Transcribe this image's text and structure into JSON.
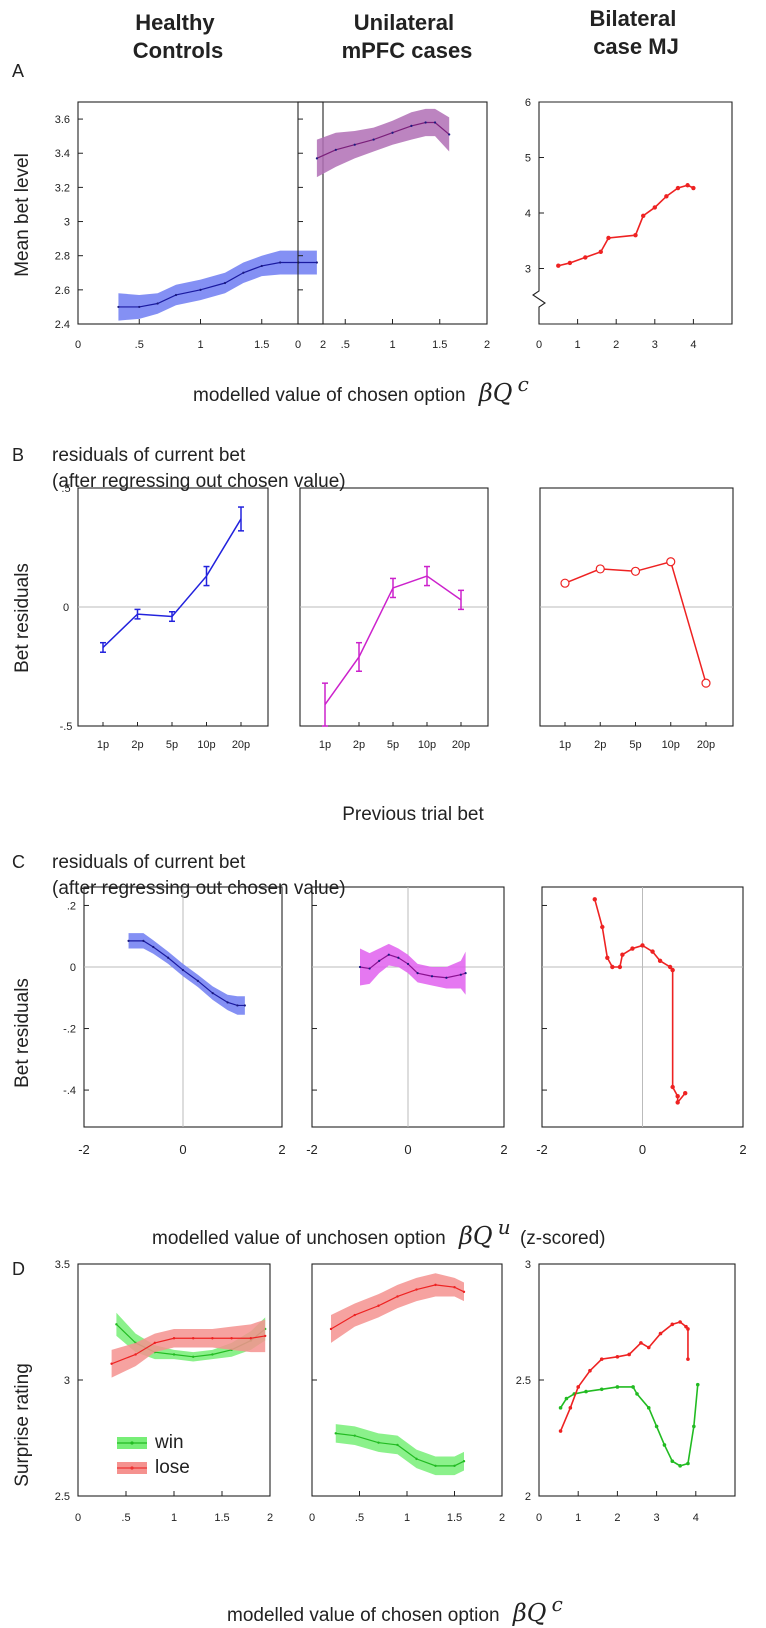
{
  "headers": [
    "Healthy\nControls",
    "Unilateral\nmPFC cases",
    "Bilateral\ncase MJ"
  ],
  "panel_letters": [
    "A",
    "B",
    "C",
    "D"
  ],
  "section_B_title": [
    "residuals of current bet",
    "(after regressing out chosen value)"
  ],
  "section_C_title": [
    "residuals of current bet",
    "(after regressing out chosen value)"
  ],
  "xlabel_A": "modelled value of chosen option",
  "xlabel_A_math": "βQ",
  "xlabel_A_sup": "c",
  "xlabel_B": "Previous trial bet",
  "xlabel_C": "modelled value of unchosen option",
  "xlabel_C_math": "βQ",
  "xlabel_C_sup": "u",
  "xlabel_C_suffix": "(z-scored)",
  "xlabel_D": "modelled value of chosen option",
  "xlabel_D_math": "βQ",
  "xlabel_D_sup": "c",
  "ylabel_A": "Mean bet level",
  "ylabel_B": "Bet residuals",
  "ylabel_C": "Bet residuals",
  "ylabel_D": "Surprise rating",
  "legend": [
    {
      "name": "win",
      "color": "#22bb22"
    },
    {
      "name": "lose",
      "color": "#ee3333"
    }
  ],
  "colors": {
    "blue": "#2222dd",
    "blue_band": "#6f7cf2",
    "purple": "#7a1f7a",
    "purple_band": "#b06fb5",
    "magenta": "#cc22cc",
    "magenta_band": "#e060ee",
    "red": "#ee2222",
    "green": "#22bb22",
    "green_band": "#77ee77",
    "red_band": "#f5928f"
  },
  "chart_data": [
    {
      "panel": "A",
      "group": "Healthy Controls",
      "type": "line",
      "x": [
        0.33,
        0.5,
        0.65,
        0.8,
        1.0,
        1.2,
        1.35,
        1.5,
        1.65,
        1.8,
        1.95
      ],
      "y": [
        2.5,
        2.5,
        2.52,
        2.57,
        2.6,
        2.64,
        2.7,
        2.74,
        2.76,
        2.76,
        2.76
      ],
      "err": [
        0.08,
        0.07,
        0.06,
        0.06,
        0.06,
        0.06,
        0.06,
        0.06,
        0.07,
        0.07,
        0.07
      ],
      "xlim": [
        0,
        2
      ],
      "ylim": [
        2.4,
        3.7
      ],
      "xticks": [
        "0",
        ".5",
        "1",
        "1.5",
        "2"
      ],
      "yticks": [
        "2.4",
        "2.6",
        "2.8",
        "3",
        "3.2",
        "3.4",
        "3.6"
      ]
    },
    {
      "panel": "A",
      "group": "Unilateral mPFC cases",
      "type": "line",
      "x": [
        0.2,
        0.4,
        0.6,
        0.8,
        1.0,
        1.2,
        1.35,
        1.45,
        1.6
      ],
      "y": [
        3.37,
        3.42,
        3.45,
        3.48,
        3.52,
        3.56,
        3.58,
        3.58,
        3.51
      ],
      "err": [
        0.11,
        0.1,
        0.08,
        0.07,
        0.07,
        0.08,
        0.08,
        0.08,
        0.1
      ],
      "xlim": [
        0,
        2
      ],
      "ylim": [
        2.4,
        3.7
      ],
      "xticks": [
        "0",
        ".5",
        "1",
        "1.5",
        "2"
      ]
    },
    {
      "panel": "A",
      "group": "Bilateral case MJ",
      "type": "line",
      "x": [
        0.5,
        0.8,
        1.2,
        1.6,
        1.8,
        2.5,
        2.7,
        3.0,
        3.3,
        3.6,
        3.85,
        4.0
      ],
      "y": [
        3.05,
        3.1,
        3.2,
        3.3,
        3.55,
        3.6,
        3.95,
        4.1,
        4.3,
        4.45,
        4.5,
        4.45
      ],
      "xlim": [
        0,
        5
      ],
      "ylim": [
        2.0,
        6.0
      ],
      "xticks": [
        "0",
        "1",
        "2",
        "3",
        "4"
      ],
      "yticks": [
        "3",
        "4",
        "5",
        "6"
      ]
    },
    {
      "panel": "B",
      "group": "Healthy Controls",
      "type": "line",
      "categories": [
        "1p",
        "2p",
        "5p",
        "10p",
        "20p"
      ],
      "values": [
        -0.17,
        -0.03,
        -0.04,
        0.13,
        0.37
      ],
      "err": [
        0.02,
        0.02,
        0.02,
        0.04,
        0.05
      ],
      "ylim": [
        -0.5,
        0.5
      ],
      "yticks": [
        "-.5",
        "0",
        ".5"
      ]
    },
    {
      "panel": "B",
      "group": "Unilateral mPFC cases",
      "type": "line",
      "categories": [
        "1p",
        "2p",
        "5p",
        "10p",
        "20p"
      ],
      "values": [
        -0.41,
        -0.21,
        0.08,
        0.13,
        0.03
      ],
      "err": [
        0.09,
        0.06,
        0.04,
        0.04,
        0.04
      ],
      "ylim": [
        -0.5,
        0.5
      ]
    },
    {
      "panel": "B",
      "group": "Bilateral case MJ",
      "type": "line",
      "categories": [
        "1p",
        "2p",
        "5p",
        "10p",
        "20p"
      ],
      "values": [
        0.1,
        0.16,
        0.15,
        0.19,
        -0.32
      ],
      "ylim": [
        -0.5,
        0.5
      ]
    },
    {
      "panel": "C",
      "group": "Healthy Controls",
      "type": "line",
      "x": [
        -1.1,
        -0.8,
        -0.6,
        -0.3,
        0.0,
        0.3,
        0.6,
        0.9,
        1.1,
        1.25
      ],
      "y": [
        0.085,
        0.085,
        0.065,
        0.03,
        -0.01,
        -0.045,
        -0.085,
        -0.115,
        -0.125,
        -0.125
      ],
      "err": [
        0.025,
        0.025,
        0.022,
        0.02,
        0.02,
        0.02,
        0.022,
        0.025,
        0.03,
        0.03
      ],
      "xlim": [
        -2,
        2
      ],
      "ylim": [
        -0.52,
        0.26
      ],
      "xticks": [
        "-2",
        "0",
        "2"
      ],
      "yticks": [
        ".2",
        "0",
        "-.2",
        "-.4"
      ]
    },
    {
      "panel": "C",
      "group": "Unilateral mPFC cases",
      "type": "line",
      "x": [
        -1.0,
        -0.8,
        -0.6,
        -0.4,
        -0.2,
        0.0,
        0.2,
        0.5,
        0.8,
        1.1,
        1.2
      ],
      "y": [
        0.0,
        -0.005,
        0.02,
        0.04,
        0.03,
        0.01,
        -0.02,
        -0.03,
        -0.035,
        -0.025,
        -0.02
      ],
      "err": [
        0.06,
        0.05,
        0.04,
        0.035,
        0.03,
        0.03,
        0.03,
        0.03,
        0.035,
        0.045,
        0.07
      ],
      "xlim": [
        -2,
        2
      ],
      "ylim": [
        -0.52,
        0.26
      ],
      "xticks": [
        "-2",
        "0",
        "2"
      ]
    },
    {
      "panel": "C",
      "group": "Bilateral case MJ",
      "type": "line",
      "x": [
        -0.95,
        -0.8,
        -0.7,
        -0.6,
        -0.45,
        -0.4,
        -0.2,
        0.0,
        0.2,
        0.35,
        0.55,
        0.6,
        0.6,
        0.7,
        0.7,
        0.85
      ],
      "y": [
        0.22,
        0.13,
        0.03,
        0.0,
        0.0,
        0.04,
        0.06,
        0.07,
        0.05,
        0.02,
        0.0,
        -0.01,
        -0.39,
        -0.42,
        -0.44,
        -0.41
      ],
      "xlim": [
        -2,
        2
      ],
      "ylim": [
        -0.52,
        0.26
      ],
      "xticks": [
        "-2",
        "0",
        "2"
      ]
    },
    {
      "panel": "D",
      "group": "Healthy Controls",
      "type": "line",
      "series": [
        {
          "name": "win",
          "x": [
            0.4,
            0.6,
            0.8,
            1.0,
            1.2,
            1.4,
            1.6,
            1.8,
            1.95
          ],
          "y": [
            3.24,
            3.16,
            3.12,
            3.11,
            3.1,
            3.11,
            3.13,
            3.17,
            3.22
          ],
          "err": [
            0.05,
            0.04,
            0.03,
            0.02,
            0.02,
            0.02,
            0.03,
            0.04,
            0.05
          ]
        },
        {
          "name": "lose",
          "x": [
            0.35,
            0.6,
            0.8,
            1.0,
            1.2,
            1.4,
            1.6,
            1.8,
            1.95
          ],
          "y": [
            3.07,
            3.11,
            3.16,
            3.18,
            3.18,
            3.18,
            3.18,
            3.18,
            3.19
          ],
          "err": [
            0.06,
            0.05,
            0.04,
            0.04,
            0.04,
            0.04,
            0.05,
            0.06,
            0.07
          ]
        }
      ],
      "xlim": [
        0,
        2
      ],
      "ylim": [
        2.5,
        3.5
      ],
      "xticks": [
        "0",
        ".5",
        "1",
        "1.5",
        "2"
      ],
      "yticks": [
        "2.5",
        "3",
        "3.5"
      ]
    },
    {
      "panel": "D",
      "group": "Unilateral mPFC cases",
      "type": "line",
      "series": [
        {
          "name": "win",
          "x": [
            0.25,
            0.45,
            0.7,
            0.9,
            1.1,
            1.3,
            1.5,
            1.6
          ],
          "y": [
            2.77,
            2.76,
            2.73,
            2.72,
            2.66,
            2.63,
            2.63,
            2.65
          ],
          "err": [
            0.04,
            0.04,
            0.04,
            0.04,
            0.04,
            0.04,
            0.04,
            0.04
          ]
        },
        {
          "name": "lose",
          "x": [
            0.2,
            0.45,
            0.7,
            0.9,
            1.1,
            1.3,
            1.5,
            1.6
          ],
          "y": [
            3.22,
            3.28,
            3.32,
            3.36,
            3.39,
            3.41,
            3.4,
            3.38
          ],
          "err": [
            0.06,
            0.05,
            0.05,
            0.05,
            0.05,
            0.05,
            0.04,
            0.04
          ]
        }
      ],
      "xlim": [
        0,
        2
      ],
      "ylim": [
        2.5,
        3.5
      ],
      "xticks": [
        "0",
        ".5",
        "1",
        "1.5",
        "2"
      ]
    },
    {
      "panel": "D",
      "group": "Bilateral case MJ",
      "type": "line",
      "series": [
        {
          "name": "win",
          "x": [
            0.55,
            0.7,
            0.9,
            1.2,
            1.6,
            2.0,
            2.4,
            2.5,
            2.8,
            3.0,
            3.2,
            3.4,
            3.6,
            3.8,
            3.95,
            4.05
          ],
          "y": [
            2.38,
            2.42,
            2.44,
            2.45,
            2.46,
            2.47,
            2.47,
            2.44,
            2.38,
            2.3,
            2.22,
            2.15,
            2.13,
            2.14,
            2.3,
            2.48
          ],
          "color": "#22bb22"
        },
        {
          "name": "lose",
          "x": [
            0.55,
            0.8,
            1.0,
            1.3,
            1.6,
            2.0,
            2.3,
            2.6,
            2.8,
            3.1,
            3.4,
            3.6,
            3.75,
            3.8,
            3.8
          ],
          "y": [
            2.28,
            2.38,
            2.47,
            2.54,
            2.59,
            2.6,
            2.61,
            2.66,
            2.64,
            2.7,
            2.74,
            2.75,
            2.73,
            2.72,
            2.59
          ],
          "color": "#ee2222"
        }
      ],
      "xlim": [
        0,
        5
      ],
      "ylim": [
        2.0,
        3.0
      ],
      "xticks": [
        "0",
        "1",
        "2",
        "3",
        "4"
      ],
      "yticks": [
        "2",
        "2.5",
        "3"
      ]
    }
  ]
}
